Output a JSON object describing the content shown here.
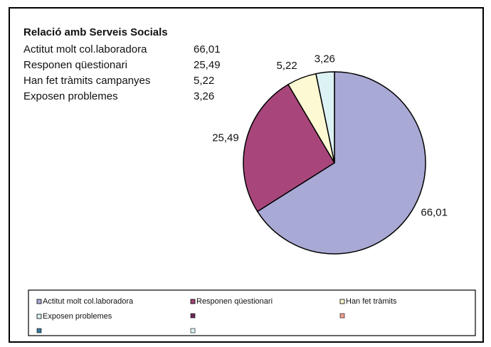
{
  "chart_data": {
    "type": "pie",
    "title": "Relació amb Serveis Socials",
    "categories": [
      "Actitut molt col.laboradora",
      "Responen qüestionari",
      "Han fet tràmits campanyes",
      "Exposen problemes"
    ],
    "values": [
      66.01,
      25.49,
      5.22,
      3.26
    ],
    "value_labels": [
      "66,01",
      "25,49",
      "5,22",
      "3,26"
    ],
    "colors": [
      "#a9a9d5",
      "#a8467b",
      "#fdf9d3",
      "#ddf2f5"
    ],
    "legend": [
      "Actitut molt col.laboradora",
      "Responen qüestionari",
      "Han fet tràmits",
      "Exposen problemes"
    ]
  }
}
